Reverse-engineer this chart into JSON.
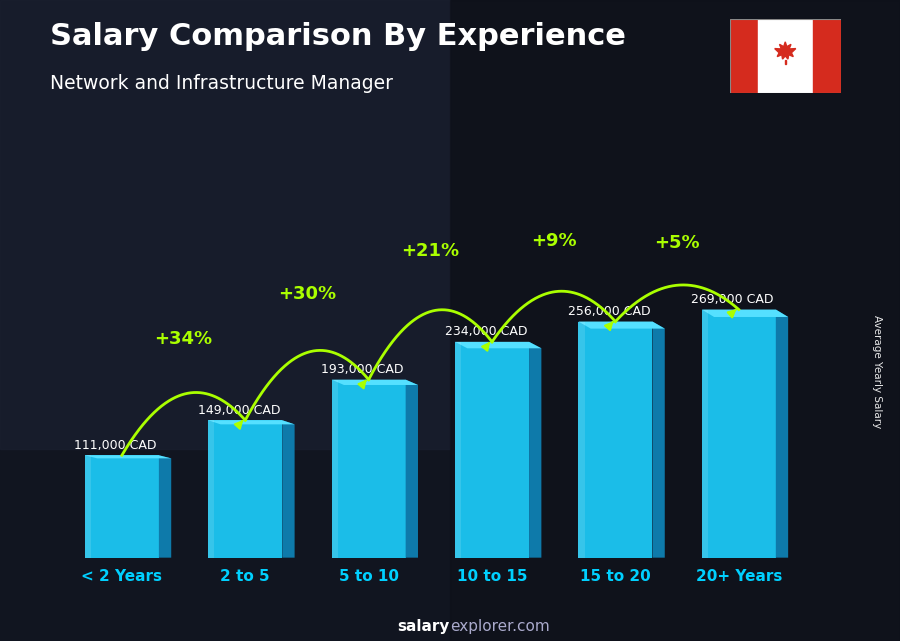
{
  "title": "Salary Comparison By Experience",
  "subtitle": "Network and Infrastructure Manager",
  "categories": [
    "< 2 Years",
    "2 to 5",
    "5 to 10",
    "10 to 15",
    "15 to 20",
    "20+ Years"
  ],
  "values": [
    111000,
    149000,
    193000,
    234000,
    256000,
    269000
  ],
  "salary_labels": [
    "111,000 CAD",
    "149,000 CAD",
    "193,000 CAD",
    "234,000 CAD",
    "256,000 CAD",
    "269,000 CAD"
  ],
  "pct_changes": [
    "+34%",
    "+30%",
    "+21%",
    "+9%",
    "+5%"
  ],
  "ylabel_right": "Average Yearly Salary",
  "bar_front": "#1bbde8",
  "bar_side": "#0e7aaa",
  "bar_top": "#55e0ff",
  "bg_dark": "#1a1e2e",
  "title_color": "#ffffff",
  "subtitle_color": "#ffffff",
  "salary_color": "#ffffff",
  "pct_color": "#aaff00",
  "xtick_color": "#00d0ff",
  "footer_salary_color": "#ffffff",
  "footer_explorer_color": "#aaaacc",
  "flag_red": "#d52b1e",
  "flag_white": "#ffffff"
}
